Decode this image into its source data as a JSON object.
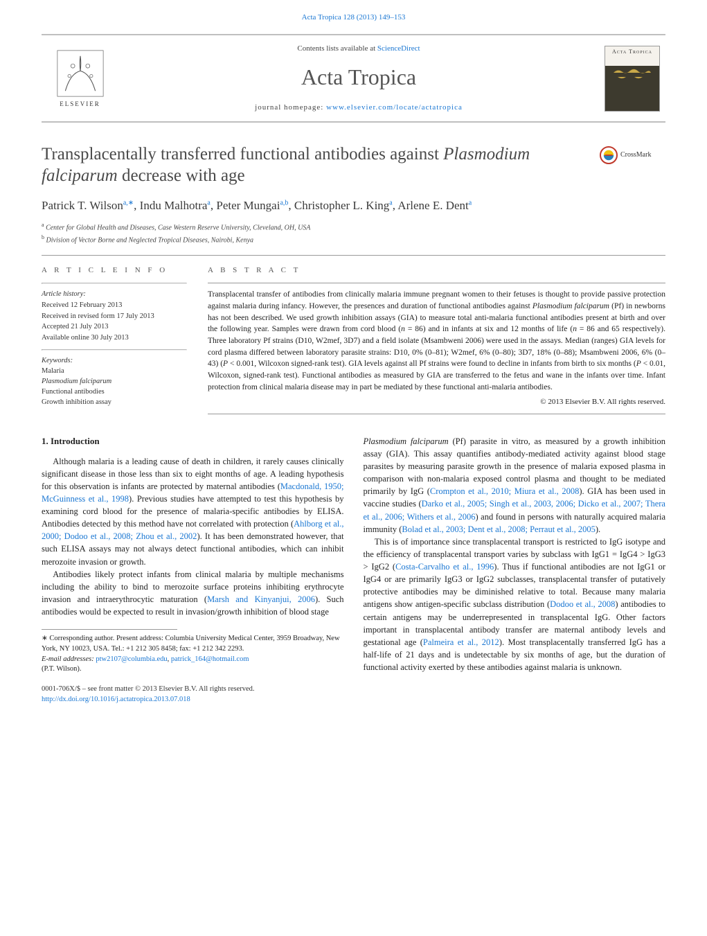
{
  "top_citation": "Acta Tropica 128 (2013) 149–153",
  "header": {
    "contents_prefix": "Contents lists available at ",
    "contents_link": "ScienceDirect",
    "journal": "Acta Tropica",
    "homepage_prefix": "journal homepage: ",
    "homepage_url": "www.elsevier.com/locate/actatropica",
    "publisher": "ELSEVIER",
    "cover_title": "Acta Tropica"
  },
  "crossmark_label": "CrossMark",
  "title_html": "Transplacentally transferred functional antibodies against <em>Plasmodium falciparum</em> decrease with age",
  "authors_html": "Patrick T. Wilson<sup>a,∗</sup>, Indu Malhotra<sup>a</sup>, Peter Mungai<sup>a,b</sup>, Christopher L. King<sup>a</sup>, Arlene E. Dent<sup>a</sup>",
  "affiliations": [
    {
      "sup": "a",
      "text": "Center for Global Health and Diseases, Case Western Reserve University, Cleveland, OH, USA"
    },
    {
      "sup": "b",
      "text": "Division of Vector Borne and Neglected Tropical Diseases, Nairobi, Kenya"
    }
  ],
  "info": {
    "heading": "A R T I C L E   I N F O",
    "history_label": "Article history:",
    "history": [
      "Received 12 February 2013",
      "Received in revised form 17 July 2013",
      "Accepted 21 July 2013",
      "Available online 30 July 2013"
    ],
    "keywords_label": "Keywords:",
    "keywords": [
      "Malaria",
      "Plasmodium falciparum",
      "Functional antibodies",
      "Growth inhibition assay"
    ]
  },
  "abstract": {
    "heading": "A B S T R A C T",
    "text_html": "Transplacental transfer of antibodies from clinically malaria immune pregnant women to their fetuses is thought to provide passive protection against malaria during infancy. However, the presences and duration of functional antibodies against <em>Plasmodium falciparum</em> (Pf) in newborns has not been described. We used growth inhibition assays (GIA) to measure total anti-malaria functional antibodies present at birth and over the following year. Samples were drawn from cord blood (<em>n</em> = 86) and in infants at six and 12 months of life (<em>n</em> = 86 and 65 respectively). Three laboratory Pf strains (D10, W2mef, 3D7) and a field isolate (Msambweni 2006) were used in the assays. Median (ranges) GIA levels for cord plasma differed between laboratory parasite strains: D10, 0% (0–81); W2mef, 6% (0–80); 3D7, 18% (0–88); Msambweni 2006, 6% (0–43) (<em>P</em> < 0.001, Wilcoxon signed-rank test). GIA levels against all Pf strains were found to decline in infants from birth to six months (<em>P</em> < 0.01, Wilcoxon, signed-rank test). Functional antibodies as measured by GIA are transferred to the fetus and wane in the infants over time. Infant protection from clinical malaria disease may in part be mediated by these functional anti-malaria antibodies.",
    "copyright": "© 2013 Elsevier B.V. All rights reserved."
  },
  "sections": {
    "intro_heading": "1.  Introduction"
  },
  "body": {
    "p1_html": "Although malaria is a leading cause of death in children, it rarely causes clinically significant disease in those less than six to eight months of age. A leading hypothesis for this observation is infants are protected by maternal antibodies (<span class=\"ref\">Macdonald, 1950; McGuinness et al., 1998</span>). Previous studies have attempted to test this hypothesis by examining cord blood for the presence of malaria-specific antibodies by ELISA. Antibodies detected by this method have not correlated with protection (<span class=\"ref\">Ahlborg et al., 2000; Dodoo et al., 2008; Zhou et al., 2002</span>). It has been demonstrated however, that such ELISA assays may not always detect functional antibodies, which can inhibit merozoite invasion or growth.",
    "p2_html": "Antibodies likely protect infants from clinical malaria by multiple mechanisms including the ability to bind to merozoite surface proteins inhibiting erythrocyte invasion and intraerythrocytic maturation (<span class=\"ref\">Marsh and Kinyanjui, 2006</span>). Such antibodies would be expected to result in invasion/growth inhibition of blood stage",
    "p3_html": "<em>Plasmodium falciparum</em> (Pf) parasite in vitro, as measured by a growth inhibition assay (GIA). This assay quantifies antibody-mediated activity against blood stage parasites by measuring parasite growth in the presence of malaria exposed plasma in comparison with non-malaria exposed control plasma and thought to be mediated primarily by IgG (<span class=\"ref\">Crompton et al., 2010; Miura et al., 2008</span>). GIA has been used in vaccine studies (<span class=\"ref\">Darko et al., 2005; Singh et al., 2003, 2006; Dicko et al., 2007; Thera et al., 2006; Withers et al., 2006</span>) and found in persons with naturally acquired malaria immunity (<span class=\"ref\">Bolad et al., 2003; Dent et al., 2008; Perraut et al., 2005</span>).",
    "p4_html": "This is of importance since transplacental transport is restricted to IgG isotype and the efficiency of transplacental transport varies by subclass with IgG1 = IgG4 > IgG3 > IgG2 (<span class=\"ref\">Costa-Carvalho et al., 1996</span>). Thus if functional antibodies are not IgG1 or IgG4 or are primarily IgG3 or IgG2 subclasses, transplacental transfer of putatively protective antibodies may be diminished relative to total. Because many malaria antigens show antigen-specific subclass distribution (<span class=\"ref\">Dodoo et al., 2008</span>) antibodies to certain antigens may be underrepresented in transplacental IgG. Other factors important in transplacental antibody transfer are maternal antibody levels and gestational age (<span class=\"ref\">Palmeira et al., 2012</span>). Most transplacentally transferred IgG has a half-life of 21 days and is undetectable by six months of age, but the duration of functional activity exerted by these antibodies against malaria is unknown."
  },
  "footnotes": {
    "corr_html": "∗ Corresponding author. Present address: Columbia University Medical Center, 3959 Broadway, New York, NY 10023, USA. Tel.: +1 212 305 8458; fax: +1 212 342 2293.",
    "email_label": "E-mail addresses:",
    "email1": "ptw2107@columbia.edu",
    "email2": "patrick_164@hotmail.com",
    "email_person": "(P.T. Wilson)."
  },
  "footer": {
    "issn": "0001-706X/$ – see front matter © 2013 Elsevier B.V. All rights reserved.",
    "doi": "http://dx.doi.org/10.1016/j.actatropica.2013.07.018"
  },
  "colors": {
    "link": "#1976d2",
    "heading_gray": "#4a4a4a",
    "rule": "#999999",
    "crossmark_red": "#c0392b",
    "crossmark_yellow": "#f1c40f",
    "crossmark_blue": "#2980b9"
  }
}
